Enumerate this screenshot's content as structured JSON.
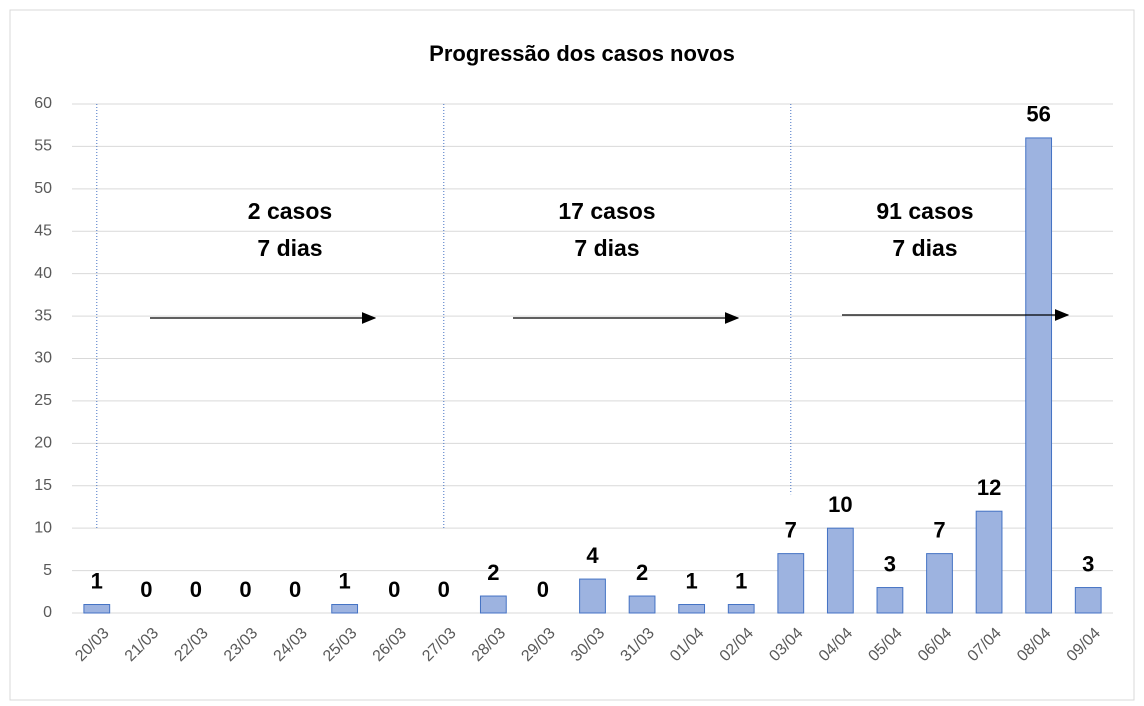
{
  "chart_data": {
    "type": "bar",
    "title": "Progressão dos casos novos",
    "categories": [
      "20/03",
      "21/03",
      "22/03",
      "23/03",
      "24/03",
      "25/03",
      "26/03",
      "27/03",
      "28/03",
      "29/03",
      "30/03",
      "31/03",
      "01/04",
      "02/04",
      "03/04",
      "04/04",
      "05/04",
      "06/04",
      "07/04",
      "08/04",
      "09/04"
    ],
    "values": [
      1,
      0,
      0,
      0,
      0,
      1,
      0,
      0,
      2,
      0,
      4,
      2,
      1,
      1,
      7,
      10,
      3,
      7,
      12,
      56,
      3
    ],
    "color": "#9db3e0",
    "ylim": [
      0,
      60
    ],
    "yticks": [
      0,
      5,
      10,
      15,
      20,
      25,
      30,
      35,
      40,
      45,
      50,
      55,
      60
    ],
    "grid": true,
    "annotations": [
      [
        "2 casos",
        "7 dias"
      ],
      [
        "17 casos",
        "7 dias"
      ],
      [
        "91 casos",
        "7 dias"
      ]
    ]
  }
}
